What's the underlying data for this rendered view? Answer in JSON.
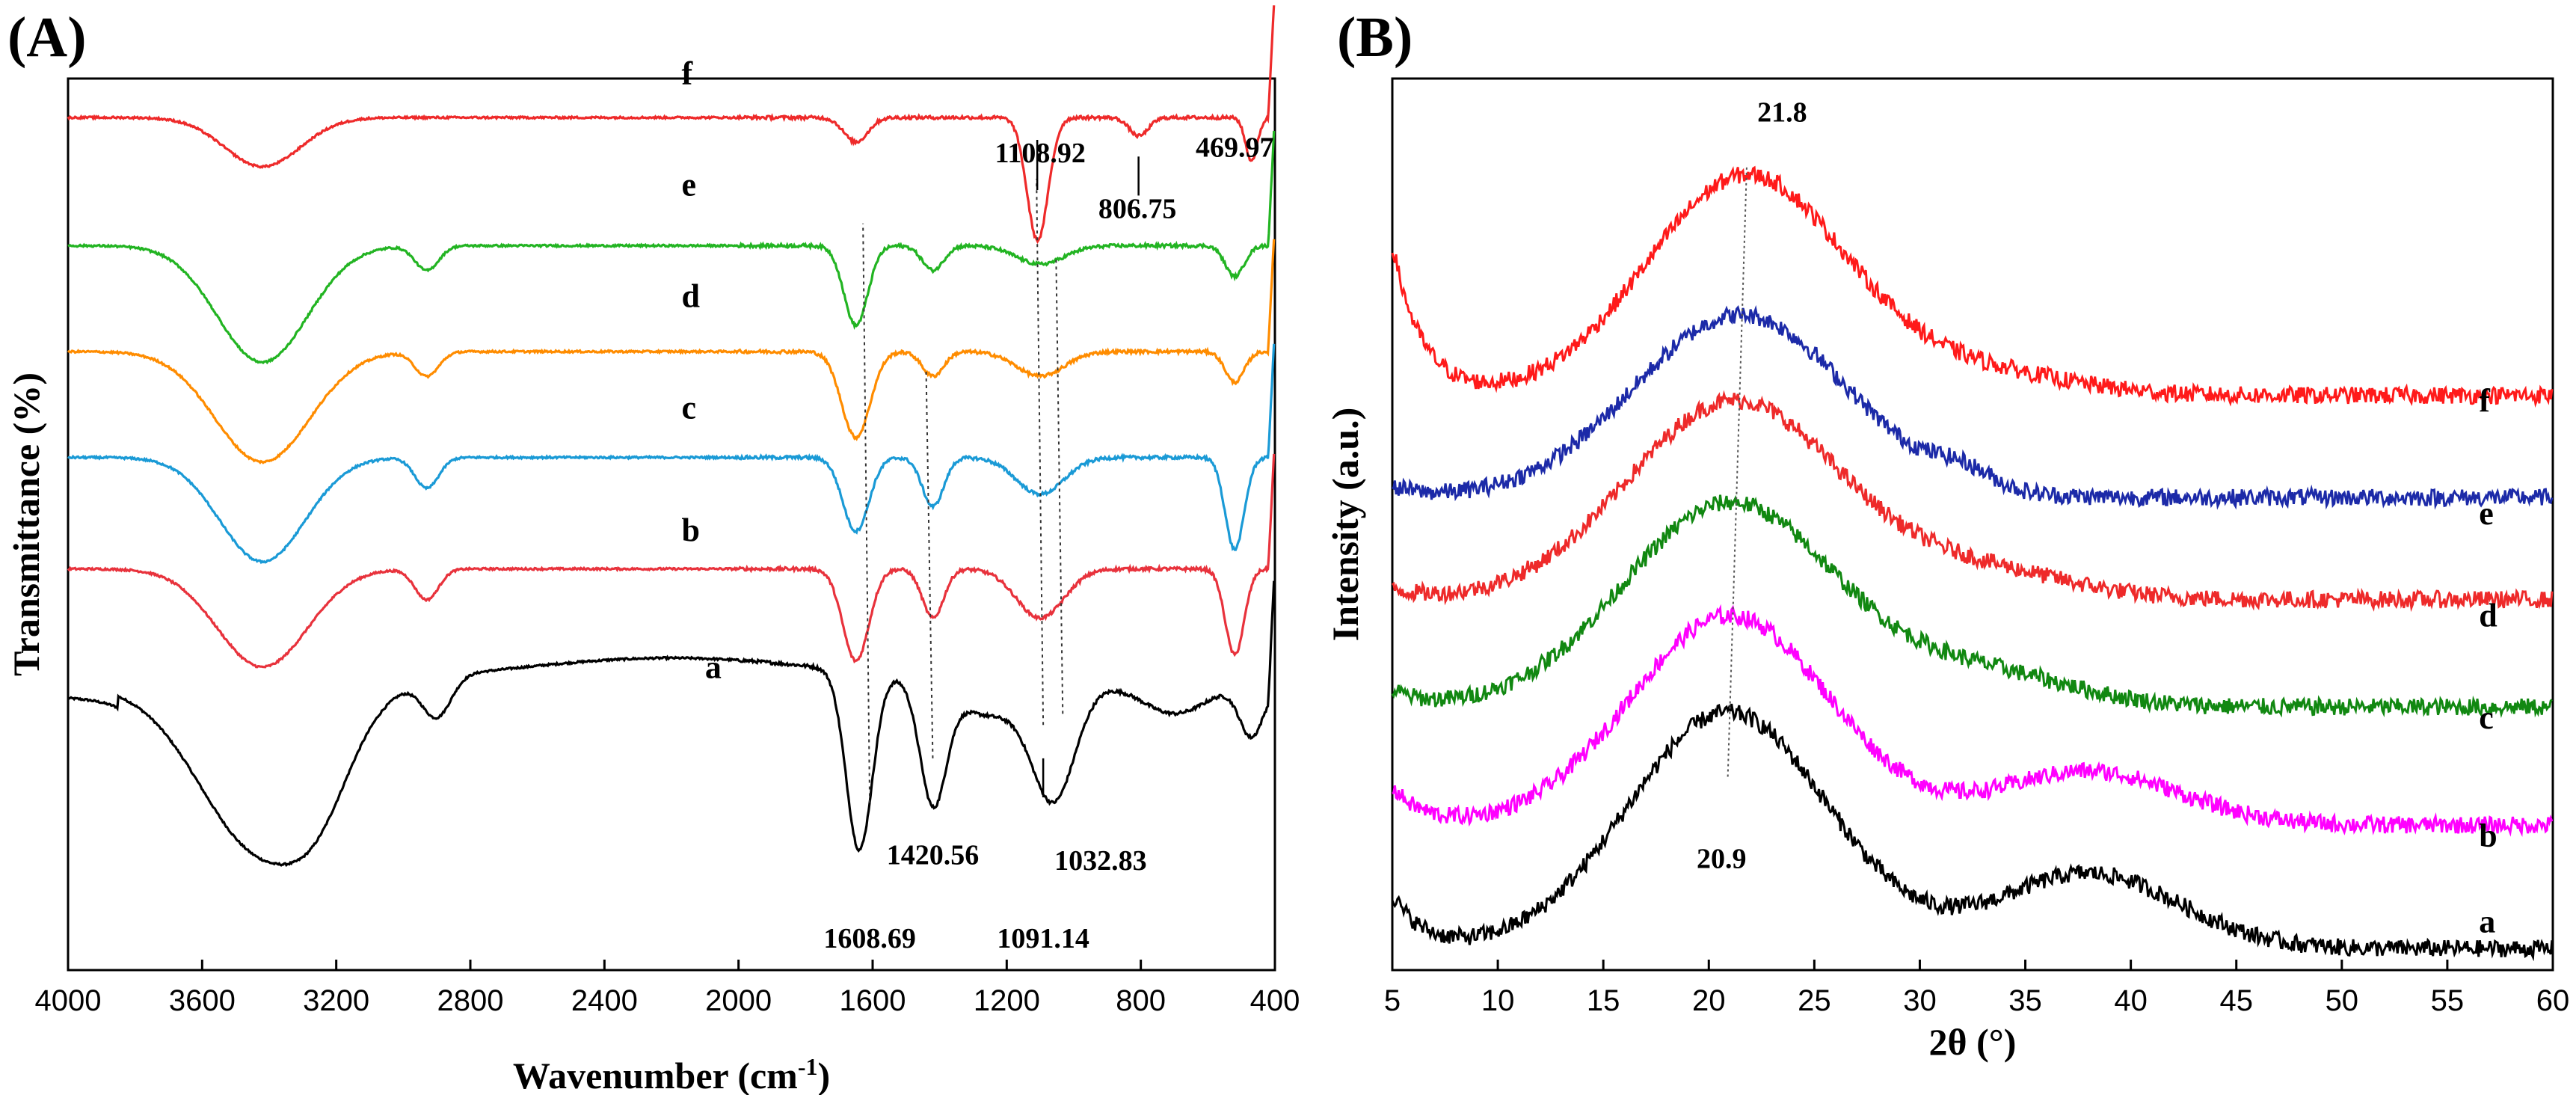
{
  "chart_data": [
    {
      "panel": "(A)",
      "type": "line",
      "xlabel_main": "Wavenumber (cm",
      "xlabel_sup": "-1",
      "xlabel_end": ")",
      "ylabel": "Transmittance (%)",
      "xlim": [
        4000,
        400
      ],
      "ylim": [
        0,
        8
      ],
      "ticks": [
        "4000",
        "3600",
        "3200",
        "2800",
        "2400",
        "2000",
        "1600",
        "1200",
        "800",
        "400"
      ],
      "tick_values": [
        4000,
        3600,
        3200,
        2800,
        2400,
        2000,
        1600,
        1200,
        800,
        400
      ],
      "series": [
        {
          "name": "a",
          "color": "#000000",
          "offset": 0.5,
          "base": 2.55,
          "scale": 1.0,
          "label_x": 2100,
          "label_y": 2.62,
          "bands": [
            [
              3420,
              260,
              -1.5
            ],
            [
              3250,
              130,
              -0.4
            ],
            [
              2900,
              60,
              -0.35
            ],
            [
              1640,
              55,
              -1.6
            ],
            [
              1420,
              55,
              -1.05
            ],
            [
              1260,
              160,
              -0.3
            ],
            [
              1060,
              90,
              -1.0
            ],
            [
              700,
              130,
              -0.25
            ],
            [
              470,
              50,
              -0.45
            ]
          ],
          "x": [
            4000,
            3900,
            3800,
            3700,
            3600,
            3500,
            3420,
            3300,
            3200,
            3100,
            3000,
            2930,
            2850,
            2600,
            2400,
            2200,
            2000,
            1800,
            1700,
            1640,
            1580,
            1520,
            1460,
            1420,
            1380,
            1300,
            1200,
            1100,
            1060,
            1000,
            950,
            900,
            800,
            700,
            600,
            500,
            470,
            430,
            400
          ]
        },
        {
          "name": "b",
          "color": "#e8323c",
          "offset": 0,
          "base": 3.6,
          "scale": 0.55,
          "label_x": 2170,
          "label_y": 3.85,
          "bands": [
            [
              3420,
              190,
              -1.6
            ],
            [
              2930,
              50,
              -0.5
            ],
            [
              1650,
              55,
              -1.5
            ],
            [
              1420,
              45,
              -0.8
            ],
            [
              1100,
              100,
              -0.8
            ],
            [
              520,
              40,
              -1.4
            ]
          ]
        },
        {
          "name": "c",
          "color": "#1a9ad6",
          "offset": 0,
          "base": 4.6,
          "scale": 0.55,
          "label_x": 2170,
          "label_y": 4.95,
          "bands": [
            [
              3420,
              180,
              -1.7
            ],
            [
              2930,
              50,
              -0.5
            ],
            [
              1650,
              55,
              -1.2
            ],
            [
              1420,
              45,
              -0.8
            ],
            [
              1100,
              100,
              -0.6
            ],
            [
              520,
              40,
              -1.5
            ]
          ]
        },
        {
          "name": "d",
          "color": "#ff8c00",
          "offset": 0,
          "base": 5.55,
          "scale": 0.55,
          "label_x": 2170,
          "label_y": 5.95,
          "bands": [
            [
              3420,
              200,
              -1.8
            ],
            [
              2930,
              50,
              -0.4
            ],
            [
              1650,
              60,
              -1.4
            ],
            [
              1420,
              45,
              -0.4
            ],
            [
              1100,
              100,
              -0.4
            ],
            [
              520,
              40,
              -0.5
            ]
          ]
        },
        {
          "name": "e",
          "color": "#22b422",
          "offset": 0,
          "base": 6.5,
          "scale": 0.55,
          "label_x": 2170,
          "label_y": 6.95,
          "bands": [
            [
              3420,
              190,
              -1.9
            ],
            [
              2930,
              50,
              -0.4
            ],
            [
              1650,
              50,
              -1.3
            ],
            [
              1420,
              45,
              -0.4
            ],
            [
              1100,
              100,
              -0.3
            ],
            [
              520,
              40,
              -0.5
            ]
          ]
        },
        {
          "name": "f",
          "color": "#ee2a2a",
          "offset": 0,
          "base": 7.65,
          "scale": 0.55,
          "label_x": 2170,
          "label_y": 7.95,
          "bands": [
            [
              3420,
              160,
              -0.8
            ],
            [
              1650,
              50,
              -0.4
            ],
            [
              1108,
              45,
              -2.0
            ],
            [
              806,
              40,
              -0.3
            ],
            [
              470,
              25,
              -0.7
            ]
          ]
        }
      ],
      "annotations": [
        {
          "text": "1608.69",
          "x": 1608.69
        },
        {
          "text": "1420.56",
          "x": 1420.56
        },
        {
          "text": "1091.14",
          "x": 1091.14
        },
        {
          "text": "1032.83",
          "x": 1032.83
        },
        {
          "text": "1108.92",
          "x": 1108.92
        },
        {
          "text": "806.75",
          "x": 806.75
        },
        {
          "text": "469.97",
          "x": 469.97
        }
      ]
    },
    {
      "panel": "(B)",
      "type": "line",
      "xlabel": "2θ (°)",
      "ylabel": "Intensity (a.u.)",
      "xlim": [
        5,
        60
      ],
      "ticks": [
        "5",
        "10",
        "15",
        "20",
        "25",
        "30",
        "35",
        "40",
        "45",
        "50",
        "55",
        "60"
      ],
      "tick_values": [
        5,
        10,
        15,
        20,
        25,
        30,
        35,
        40,
        45,
        50,
        55,
        60
      ],
      "series": [
        {
          "name": "a",
          "color": "#000000",
          "base": 0.2,
          "peak": 20.9,
          "height": 2.2,
          "width": 4.5,
          "shoulder": [
            38,
            6,
            0.7
          ],
          "start": 0.5,
          "end": 0.08
        },
        {
          "name": "b",
          "color": "#ff00ff",
          "base": 1.35,
          "peak": 21.0,
          "height": 1.95,
          "width": 4.5,
          "shoulder": [
            38,
            6,
            0.5
          ],
          "start": 0.35,
          "end": 0.0
        },
        {
          "name": "c",
          "color": "#118811",
          "base": 2.45,
          "peak": 21.0,
          "height": 1.9,
          "width": 4.8,
          "shoulder": [
            33,
            6,
            0.3
          ],
          "start": 0.15,
          "end": 0.0
        },
        {
          "name": "d",
          "color": "#ee2a2a",
          "base": 3.45,
          "peak": 21.2,
          "height": 1.85,
          "width": 4.8,
          "shoulder": [
            33,
            6,
            0.25
          ],
          "start": 0.1,
          "end": 0.0
        },
        {
          "name": "e",
          "color": "#1c2aa8",
          "base": 4.4,
          "peak": 21.5,
          "height": 1.7,
          "width": 4.8,
          "shoulder": [
            32,
            2,
            0.15
          ],
          "start": 0.1,
          "end": 0.0
        },
        {
          "name": "f",
          "color": "#ff1a1a",
          "base": 5.35,
          "peak": 21.8,
          "height": 2.05,
          "width": 4.5,
          "shoulder": [
            33,
            6,
            0.2
          ],
          "start": 1.4,
          "end": 0.0
        }
      ],
      "annotations": [
        {
          "text": "21.8",
          "x": 21.8
        },
        {
          "text": "20.9",
          "x": 20.9
        }
      ]
    }
  ]
}
